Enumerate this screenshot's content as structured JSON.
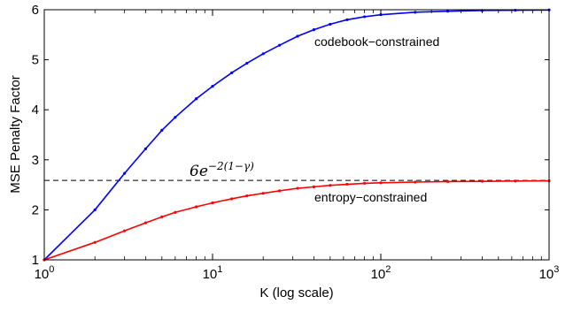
{
  "chart_data": {
    "type": "line",
    "title": "",
    "xlabel": "K (log scale)",
    "ylabel": "MSE Penalty Factor",
    "xscale": "log",
    "xlim": [
      1,
      1000
    ],
    "ylim": [
      1,
      6
    ],
    "x_ticks": [
      {
        "value": 1,
        "base": "10",
        "exp": "0"
      },
      {
        "value": 10,
        "base": "10",
        "exp": "1"
      },
      {
        "value": 100,
        "base": "10",
        "exp": "2"
      },
      {
        "value": 1000,
        "base": "10",
        "exp": "3"
      }
    ],
    "y_ticks": [
      1,
      2,
      3,
      4,
      5,
      6
    ],
    "grid": false,
    "legend": "none",
    "series": [
      {
        "label": "codebook−constrained",
        "color": "#0000ff",
        "marker": "dot",
        "x": [
          1,
          2,
          3,
          4,
          5,
          6,
          8,
          10,
          13,
          16,
          20,
          25,
          32,
          40,
          50,
          63,
          80,
          100,
          160,
          250,
          400,
          630,
          1000
        ],
        "y": [
          1.0,
          2.0,
          2.73,
          3.22,
          3.59,
          3.85,
          4.22,
          4.47,
          4.74,
          4.93,
          5.12,
          5.29,
          5.47,
          5.6,
          5.71,
          5.8,
          5.86,
          5.9,
          5.95,
          5.97,
          5.985,
          5.99,
          5.995
        ]
      },
      {
        "label": "entropy−constrained",
        "color": "#ff0000",
        "marker": "dot",
        "x": [
          1,
          2,
          3,
          4,
          5,
          6,
          8,
          10,
          13,
          16,
          20,
          25,
          32,
          40,
          50,
          63,
          80,
          100,
          160,
          250,
          400,
          630,
          1000
        ],
        "y": [
          1.0,
          1.35,
          1.58,
          1.74,
          1.86,
          1.95,
          2.06,
          2.14,
          2.22,
          2.28,
          2.33,
          2.38,
          2.43,
          2.46,
          2.49,
          2.51,
          2.53,
          2.54,
          2.555,
          2.565,
          2.57,
          2.575,
          2.58
        ]
      }
    ],
    "reference_line": {
      "y": 2.5868,
      "style": "dashed",
      "color": "#000000",
      "label_base": "6e",
      "label_exp": "−2(1−γ)"
    }
  }
}
